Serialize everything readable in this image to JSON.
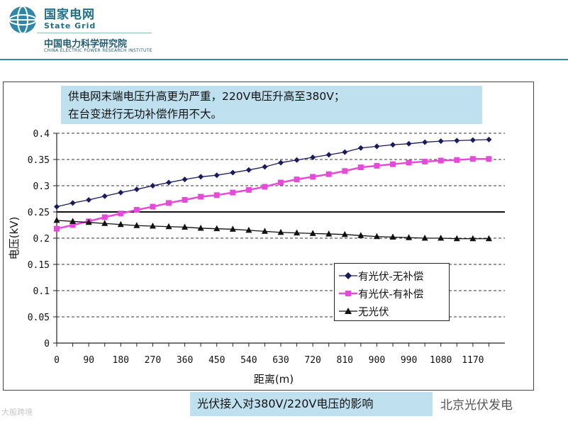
{
  "header": {
    "org_name_cn": "国家电网",
    "org_name_en": "State Grid",
    "institute_cn": "中国电力科学研究院",
    "institute_en": "CHINA ELECTRIC POWER RESEARCH INSTITUTE",
    "brand_color": "#1f6f8a"
  },
  "annotation": {
    "line1": "供电网末端电压升高更为严重，220V电压升高至380V；",
    "line2": "在台变进行无功补偿作用不大。",
    "background": "#bfe0ee"
  },
  "caption": "光伏接入对380V/220V电压的影响",
  "watermark": {
    "left": "大般跨境",
    "right": "北京光伏发电"
  },
  "chart_data": {
    "type": "line",
    "title": "",
    "xlabel": "距离(m)",
    "ylabel": "电压(kV)",
    "x": [
      0,
      45,
      90,
      135,
      180,
      225,
      270,
      315,
      360,
      405,
      450,
      495,
      540,
      585,
      630,
      675,
      720,
      765,
      810,
      855,
      900,
      945,
      990,
      1035,
      1080,
      1125,
      1170,
      1215
    ],
    "xticks": [
      "0",
      "90",
      "180",
      "270",
      "360",
      "450",
      "540",
      "630",
      "720",
      "810",
      "900",
      "990",
      "1080",
      "1170"
    ],
    "xlim": [
      0,
      1260
    ],
    "ylim": [
      0,
      0.4
    ],
    "yticks": [
      "0",
      "0.05",
      "0.1",
      "0.15",
      "0.2",
      "0.25",
      "0.3",
      "0.35",
      "0.4"
    ],
    "reference_line": 0.25,
    "series": [
      {
        "name": "有光伏-无补偿",
        "marker": "diamond",
        "color": "#1a1a5e",
        "values": [
          0.26,
          0.267,
          0.273,
          0.28,
          0.287,
          0.293,
          0.3,
          0.306,
          0.312,
          0.317,
          0.32,
          0.325,
          0.33,
          0.336,
          0.344,
          0.349,
          0.354,
          0.359,
          0.364,
          0.372,
          0.375,
          0.378,
          0.38,
          0.383,
          0.385,
          0.386,
          0.387,
          0.388
        ]
      },
      {
        "name": "有光伏-有补偿",
        "marker": "square",
        "color": "#e64ad9",
        "values": [
          0.218,
          0.225,
          0.232,
          0.24,
          0.247,
          0.254,
          0.26,
          0.267,
          0.273,
          0.279,
          0.282,
          0.287,
          0.292,
          0.298,
          0.306,
          0.312,
          0.317,
          0.322,
          0.328,
          0.335,
          0.338,
          0.341,
          0.344,
          0.346,
          0.348,
          0.349,
          0.351,
          0.351
        ]
      },
      {
        "name": "无光伏",
        "marker": "triangle",
        "color": "#111111",
        "values": [
          0.234,
          0.232,
          0.23,
          0.228,
          0.226,
          0.224,
          0.223,
          0.222,
          0.221,
          0.219,
          0.218,
          0.217,
          0.215,
          0.213,
          0.211,
          0.21,
          0.209,
          0.208,
          0.207,
          0.205,
          0.203,
          0.202,
          0.201,
          0.2,
          0.2,
          0.199,
          0.199,
          0.199
        ]
      }
    ],
    "legend_position": "bottom-right"
  }
}
